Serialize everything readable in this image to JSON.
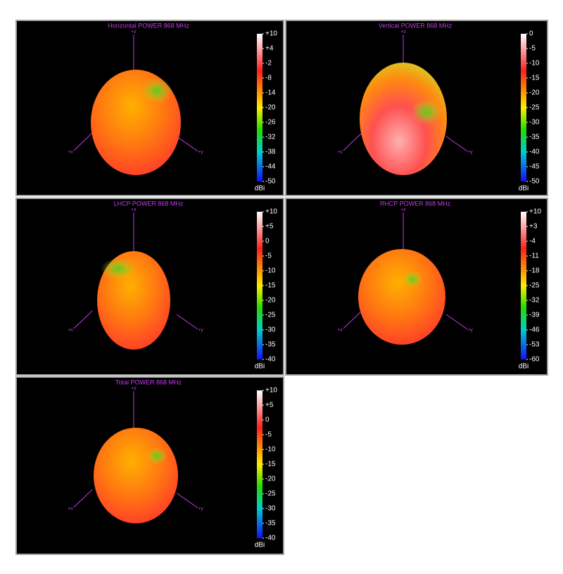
{
  "chart_data": [
    {
      "type": "3d-pattern",
      "title": "Horizontal POWER 868  MHz",
      "zlabel": "+z",
      "xlabel": "+x",
      "ylabel": "+y",
      "colorbar_label": "dBi",
      "clim": [
        -50,
        10
      ],
      "cticks": [
        {
          "value": 10,
          "label": "+10"
        },
        {
          "value": 4,
          "label": "+4"
        },
        -2,
        -8,
        -14,
        -20,
        -26,
        -32,
        -38,
        -44,
        -50
      ]
    },
    {
      "type": "3d-pattern",
      "title": "Vertical POWER 868  MHz",
      "zlabel": "+z",
      "xlabel": "+x",
      "ylabel": "+y",
      "colorbar_label": "dBi",
      "clim": [
        -50,
        0
      ],
      "cticks": [
        0,
        -5,
        -10,
        -15,
        -20,
        -25,
        -30,
        -35,
        -40,
        -45,
        -50
      ]
    },
    {
      "type": "3d-pattern",
      "title": "LHCP POWER 868  MHz",
      "zlabel": "+z",
      "xlabel": "+x",
      "ylabel": "+y",
      "colorbar_label": "dBi",
      "clim": [
        -40,
        10
      ],
      "cticks": [
        {
          "value": 10,
          "label": "+10"
        },
        {
          "value": 5,
          "label": "+5"
        },
        0,
        -5,
        -10,
        -15,
        -20,
        -25,
        -30,
        -35,
        -40
      ]
    },
    {
      "type": "3d-pattern",
      "title": "RHCP POWER 868  MHz",
      "zlabel": "+z",
      "xlabel": "+x",
      "ylabel": "+y",
      "colorbar_label": "dBi",
      "clim": [
        -60,
        10
      ],
      "cticks": [
        {
          "value": 10,
          "label": "+10"
        },
        {
          "value": 3,
          "label": "+3"
        },
        -4,
        -11,
        -18,
        -25,
        -32,
        -39,
        -46,
        -53,
        -60
      ]
    },
    {
      "type": "3d-pattern",
      "title": "Total POWER 868  MHz",
      "zlabel": "+z",
      "xlabel": "+x",
      "ylabel": "+y",
      "colorbar_label": "dBi",
      "clim": [
        -40,
        10
      ],
      "cticks": [
        {
          "value": 10,
          "label": "+10"
        },
        {
          "value": 5,
          "label": "+5"
        },
        0,
        -5,
        -10,
        -15,
        -20,
        -25,
        -30,
        -35,
        -40
      ]
    }
  ]
}
